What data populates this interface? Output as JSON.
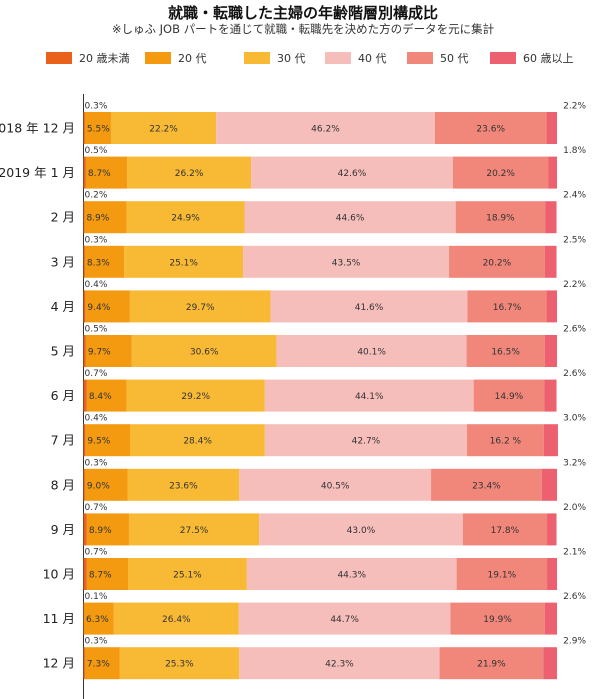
{
  "title": "就職・転職した主婦の年齢階層別構成比",
  "subtitle": "※しゅふ JOB パートを通じて就職・転職先を決めた方のデータを元に集計",
  "colors": {
    "20歳未満": "#e8621c",
    "20代": "#f39a10",
    "30代": "#f8b934",
    "40代": "#f6bebb",
    "50代": "#f0877a",
    "60歳以上": "#ec6070"
  },
  "chart_data": {
    "type": "bar",
    "orientation": "horizontal",
    "stacked": true,
    "xlim": [
      0,
      100
    ],
    "legend_position": "top",
    "categories": [
      "2018 年 12 月",
      "2019 年 1 月",
      "2 月",
      "3 月",
      "4 月",
      "5 月",
      "6 月",
      "7 月",
      "8 月",
      "9 月",
      "10 月",
      "11 月",
      "12 月"
    ],
    "series": [
      {
        "name": "20 歳未満",
        "values": [
          0.3,
          0.5,
          0.2,
          0.3,
          0.4,
          0.5,
          0.7,
          0.4,
          0.3,
          0.7,
          0.7,
          0.1,
          0.3
        ],
        "labels": [
          "0.3%",
          "0.5%",
          "0.2%",
          "0.3%",
          "0.4%",
          "0.5%",
          "0.7%",
          "0.4%",
          "0.3%",
          "0.7%",
          "0.7%",
          "0.1%",
          "0.3%"
        ]
      },
      {
        "name": "20 代",
        "values": [
          5.5,
          8.7,
          8.9,
          8.3,
          9.4,
          9.7,
          8.4,
          9.5,
          9.0,
          8.9,
          8.7,
          6.3,
          7.3
        ],
        "labels": [
          "5.5%",
          "8.7%",
          "8.9%",
          "8.3%",
          "9.4%",
          "9.7%",
          "8.4%",
          "9.5%",
          "9.0%",
          "8.9%",
          "8.7%",
          "6.3%",
          "7.3%"
        ]
      },
      {
        "name": "30 代",
        "values": [
          22.2,
          26.2,
          24.9,
          25.1,
          29.7,
          30.6,
          29.2,
          28.4,
          23.6,
          27.5,
          25.1,
          26.4,
          25.3
        ],
        "labels": [
          "22.2%",
          "26.2%",
          "24.9%",
          "25.1%",
          "29.7%",
          "30.6%",
          "29.2%",
          "28.4%",
          "23.6%",
          "27.5%",
          "25.1%",
          "26.4%",
          "25.3%"
        ]
      },
      {
        "name": "40 代",
        "values": [
          46.2,
          42.6,
          44.6,
          43.5,
          41.6,
          40.1,
          44.1,
          42.7,
          40.5,
          43.0,
          44.3,
          44.7,
          42.3
        ],
        "labels": [
          "46.2%",
          "42.6%",
          "44.6%",
          "43.5%",
          "41.6%",
          "40.1%",
          "44.1%",
          "42.7%",
          "40.5%",
          "43.0%",
          "44.3%",
          "44.7%",
          "42.3%"
        ]
      },
      {
        "name": "50 代",
        "values": [
          23.6,
          20.2,
          18.9,
          20.2,
          16.7,
          16.5,
          14.9,
          16.2,
          23.4,
          17.8,
          19.1,
          19.9,
          21.9
        ],
        "labels": [
          "23.6%",
          "20.2%",
          "18.9%",
          "20.2%",
          "16.7%",
          "16.5%",
          "14.9%",
          "16.2 %",
          "23.4%",
          "17.8%",
          "19.1%",
          "19.9%",
          "21.9%"
        ]
      },
      {
        "name": "60 歳以上",
        "values": [
          2.2,
          1.8,
          2.4,
          2.5,
          2.2,
          2.6,
          2.6,
          3.0,
          3.2,
          2.0,
          2.1,
          2.6,
          2.9
        ],
        "labels": [
          "2.2%",
          "1.8%",
          "2.4%",
          "2.5%",
          "2.2%",
          "2.6%",
          "2.6%",
          "3.0%",
          "3.2%",
          "2.0%",
          "2.1%",
          "2.6%",
          "2.9%"
        ]
      }
    ]
  }
}
